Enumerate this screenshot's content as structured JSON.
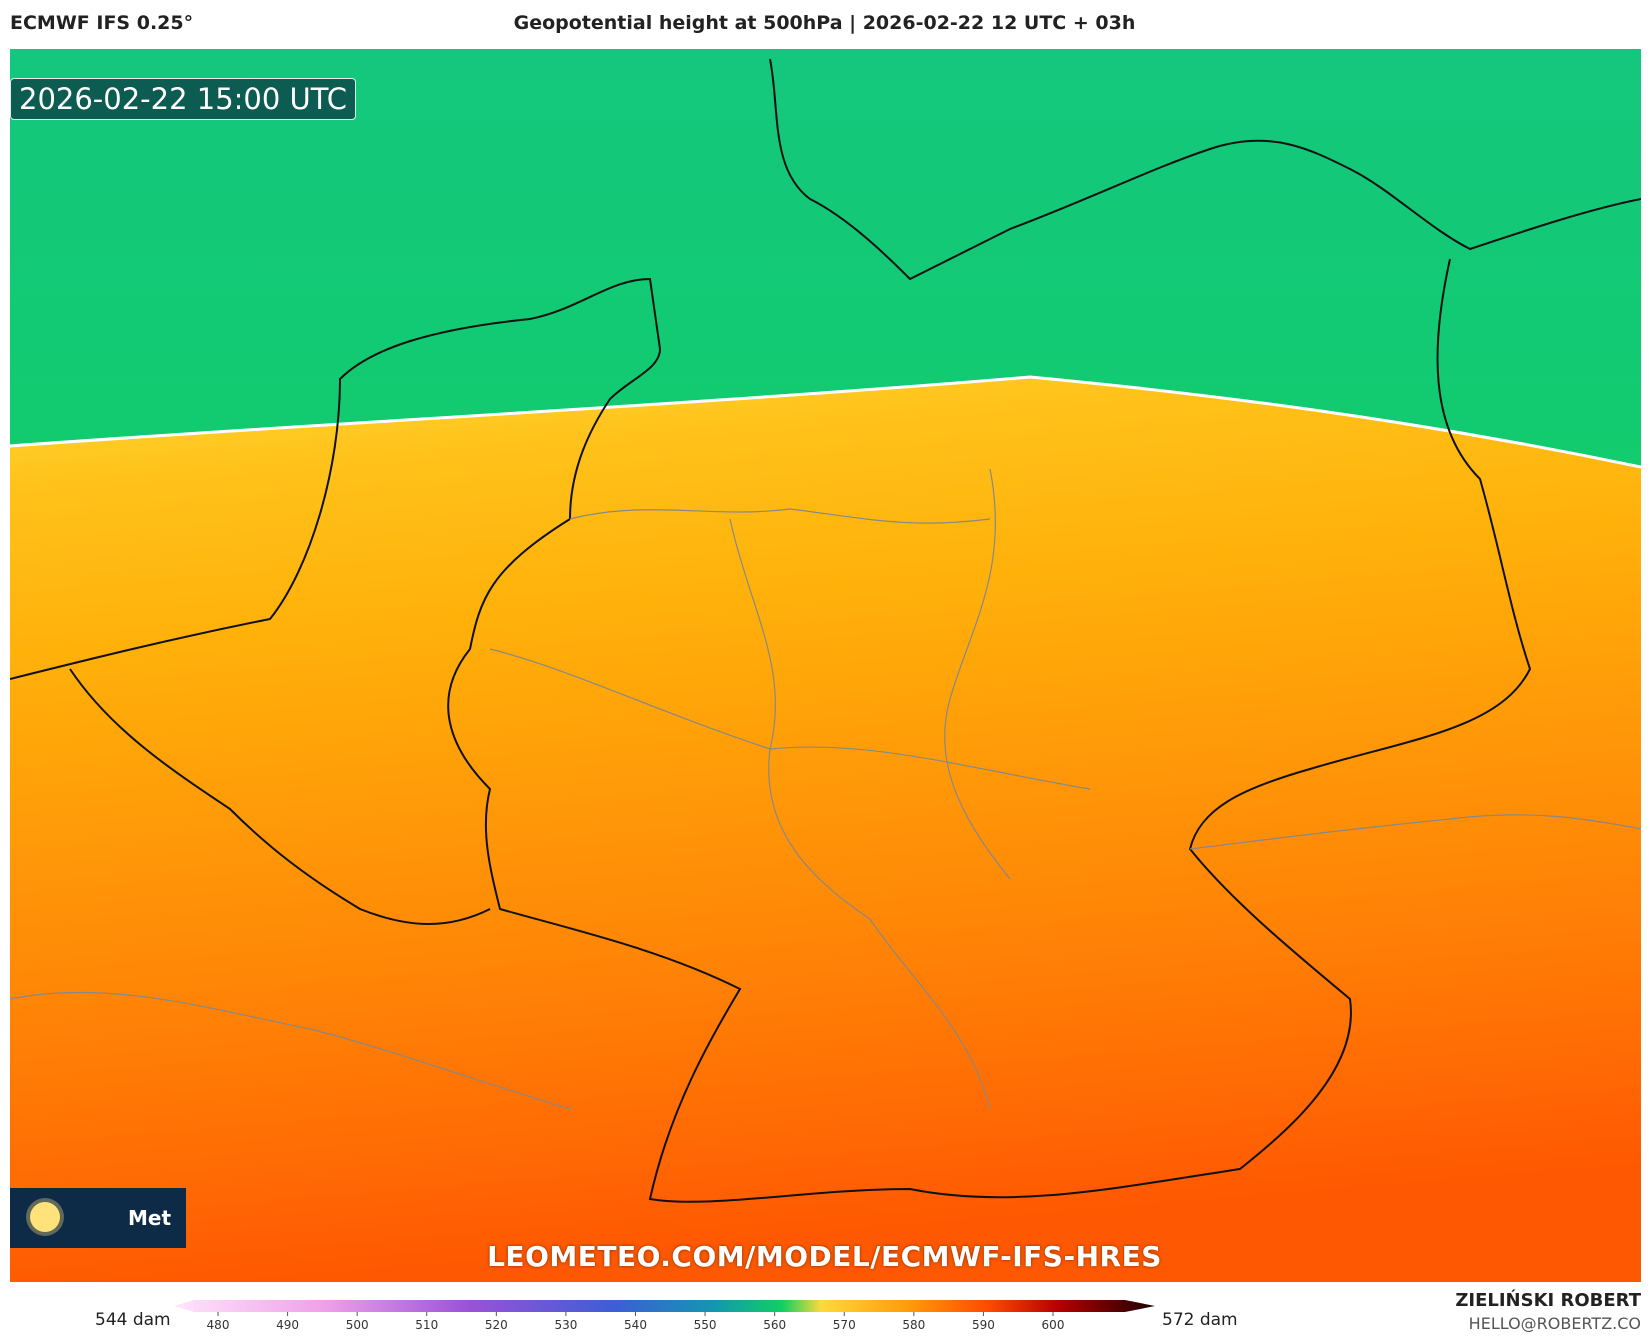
{
  "header": {
    "model": "ECMWF IFS 0.25°",
    "title": "Geopotential height at 500hPa | 2026-02-22 12 UTC + 03h"
  },
  "map": {
    "timestamp": "2026-02-22 15:00 UTC",
    "watermark": "LEOMETEO.COM/MODEL/ECMWF-IFS-HRES",
    "logo_text": "Met"
  },
  "colorbar": {
    "min_label": "544 dam",
    "max_label": "572 dam",
    "ticks": [
      480,
      490,
      500,
      510,
      520,
      530,
      540,
      550,
      560,
      570,
      580,
      590,
      600
    ]
  },
  "footer": {
    "author": "ZIELIŃSKI ROBERT",
    "email": "HELLO@ROBERTZ.CO"
  }
}
